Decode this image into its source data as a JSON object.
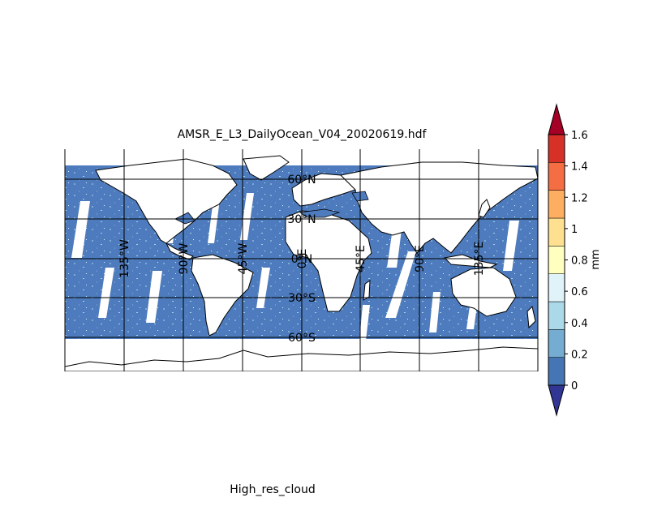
{
  "title": "AMSR_E_L3_DailyOcean_V04_20020619.hdf",
  "xlabel": "High_res_cloud",
  "colorbar": {
    "unit": "mm",
    "ticks": [
      "0",
      "0.2",
      "0.4",
      "0.6",
      "0.8",
      "1",
      "1.2",
      "1.4",
      "1.6"
    ],
    "colors": [
      "#4575b4",
      "#74add1",
      "#abd9e9",
      "#e0f3f8",
      "#ffffbf",
      "#fee090",
      "#fdae61",
      "#f46d43",
      "#d73027"
    ],
    "under_color": "#313695",
    "over_color": "#a50026",
    "extend": "both"
  },
  "map": {
    "projection": "cylindrical",
    "ocean_color": "#4d7bbd",
    "land_color": "#ffffff",
    "gap_color": "#ffffff",
    "lat_labels": [
      "60°N",
      "30°N",
      "0°N",
      "30°S",
      "60°S"
    ],
    "lon_labels": [
      "135°W",
      "90°W",
      "45°W",
      "0°E",
      "45°E",
      "90°E",
      "135°E"
    ]
  }
}
